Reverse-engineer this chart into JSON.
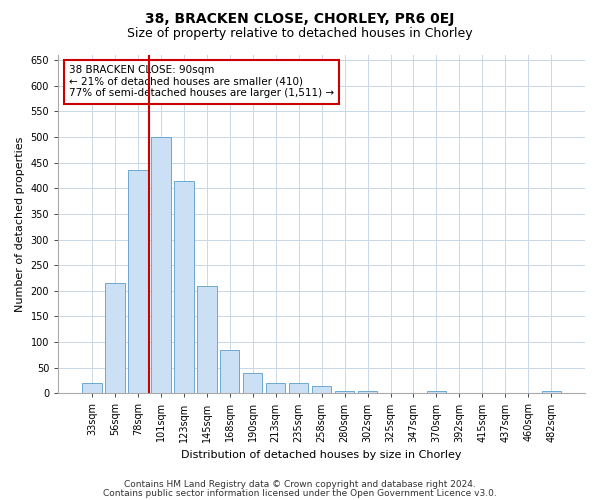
{
  "title": "38, BRACKEN CLOSE, CHORLEY, PR6 0EJ",
  "subtitle": "Size of property relative to detached houses in Chorley",
  "xlabel": "Distribution of detached houses by size in Chorley",
  "ylabel": "Number of detached properties",
  "categories": [
    "33sqm",
    "56sqm",
    "78sqm",
    "101sqm",
    "123sqm",
    "145sqm",
    "168sqm",
    "190sqm",
    "213sqm",
    "235sqm",
    "258sqm",
    "280sqm",
    "302sqm",
    "325sqm",
    "347sqm",
    "370sqm",
    "392sqm",
    "415sqm",
    "437sqm",
    "460sqm",
    "482sqm"
  ],
  "bar_values": [
    20,
    215,
    435,
    500,
    415,
    210,
    85,
    40,
    20,
    20,
    15,
    5,
    5,
    0,
    0,
    5,
    0,
    0,
    0,
    0,
    5
  ],
  "bar_color": "#cce0f5",
  "bar_edge_color": "#5b9dc9",
  "vline_color": "#cc0000",
  "annotation_text": "38 BRACKEN CLOSE: 90sqm\n← 21% of detached houses are smaller (410)\n77% of semi-detached houses are larger (1,511) →",
  "annotation_box_color": "#ffffff",
  "annotation_box_edge": "#cc0000",
  "ylim": [
    0,
    660
  ],
  "yticks": [
    0,
    50,
    100,
    150,
    200,
    250,
    300,
    350,
    400,
    450,
    500,
    550,
    600,
    650
  ],
  "footer_line1": "Contains HM Land Registry data © Crown copyright and database right 2024.",
  "footer_line2": "Contains public sector information licensed under the Open Government Licence v3.0.",
  "bg_color": "#ffffff",
  "grid_color": "#c8d8e8",
  "title_fontsize": 10,
  "subtitle_fontsize": 9,
  "xlabel_fontsize": 8,
  "ylabel_fontsize": 8,
  "tick_fontsize": 7,
  "annot_fontsize": 7.5,
  "footer_fontsize": 6.5
}
